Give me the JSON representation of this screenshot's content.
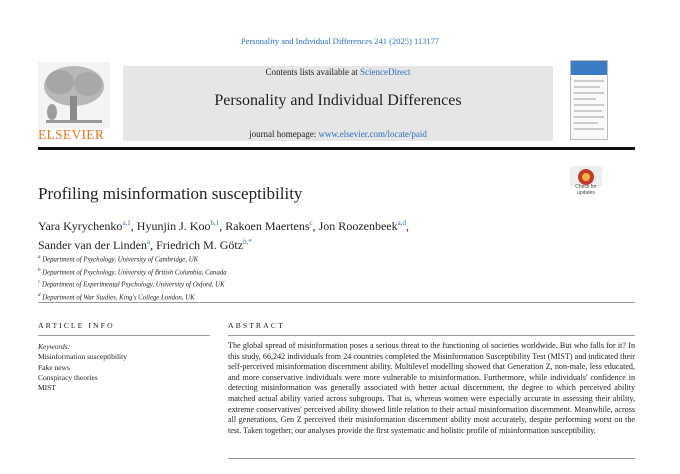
{
  "header": {
    "citation": "Personality and Individual Differences 241 (2025) 113177",
    "contents_prefix": "Contents lists available at",
    "contents_link": "ScienceDirect",
    "journal": "Personality and Individual Differences",
    "homepage_prefix": "journal homepage:",
    "homepage_link": "www.elsevier.com/locate/paid",
    "publisher": "ELSEVIER",
    "check_updates": "Check for updates"
  },
  "article": {
    "title": "Profiling misinformation susceptibility",
    "authors": [
      {
        "name": "Yara Kyrychenko",
        "sup": "a,1",
        "sep": ","
      },
      {
        "name": "Hyunjin J. Koo",
        "sup": "b,1",
        "sep": ","
      },
      {
        "name": "Rakoen Maertens",
        "sup": "c",
        "sep": ","
      },
      {
        "name": "Jon Roozenbeek",
        "sup": "a,d",
        "sep": ","
      },
      {
        "name": "Sander van der Linden",
        "sup": "a",
        "sep": ","
      },
      {
        "name": "Friedrich M. Götz",
        "sup": "b,*"
      }
    ],
    "affiliations": [
      {
        "letter": "a",
        "text": "Department of Psychology, University of Cambridge, UK"
      },
      {
        "letter": "b",
        "text": "Department of Psychology, University of British Columbia, Canada"
      },
      {
        "letter": "c",
        "text": "Department of Experimental Psychology, University of Oxford, UK"
      },
      {
        "letter": "d",
        "text": "Department of War Studies, King's College London, UK"
      }
    ],
    "info_heading": "ARTICLE INFO",
    "keywords_label": "Keywords:",
    "keywords": [
      "Misinformation susceptibility",
      "Fake news",
      "Conspiracy theories",
      "MIST"
    ],
    "abstract_heading": "ABSTRACT",
    "abstract": "The global spread of misinformation poses a serious threat to the functioning of societies worldwide. But who falls for it? In this study, 66,242 individuals from 24 countries completed the Misinformation Susceptibility Test (MIST) and indicated their self-perceived misinformation discernment ability. Multilevel modelling showed that Generation Z, non-male, less educated, and more conservative individuals were more vulnerable to misinformation. Furthermore, while individuals' confidence in detecting misinformation was generally associated with better actual discernment, the degree to which perceived ability matched actual ability varied across subgroups. That is, whereas women were especially accurate in assessing their ability, extreme conservatives' perceived ability showed little relation to their actual misinformation discernment. Meanwhile, across all generations, Gen Z perceived their misinformation discernment ability most accurately, despite performing worst on the test. Taken together, our analyses provide the first systematic and holistic profile of misinformation susceptibility."
  }
}
